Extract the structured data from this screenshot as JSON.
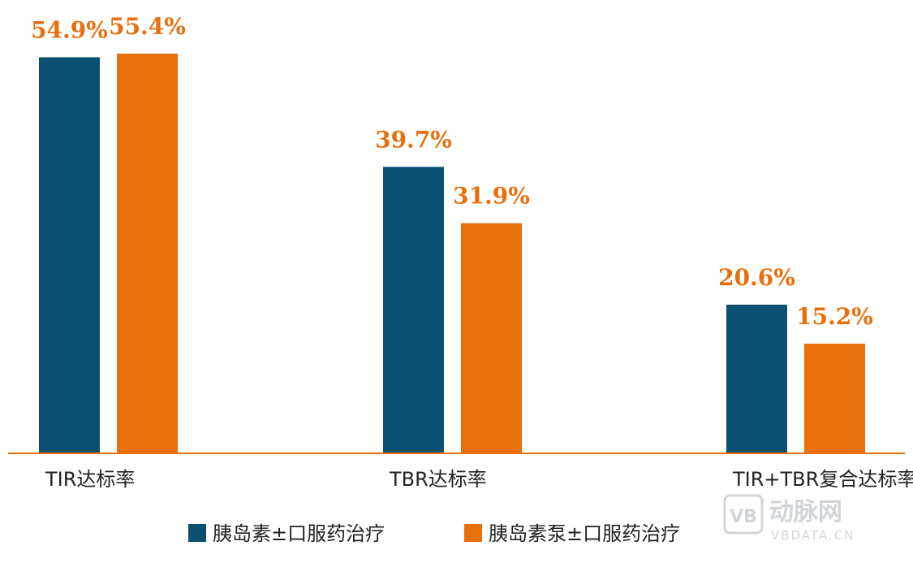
{
  "chart_data": {
    "type": "bar",
    "categories": [
      "TIR达标率",
      "TBR达标率",
      "TIR+TBR复合达标率"
    ],
    "series": [
      {
        "name": "胰岛素±口服药治疗",
        "values": [
          54.9,
          39.7,
          20.6
        ],
        "labels": [
          "54.9%",
          "39.7%",
          "20.6%"
        ]
      },
      {
        "name": "胰岛素泵±口服药治疗",
        "values": [
          55.4,
          31.9,
          15.2
        ],
        "labels": [
          "55.4%",
          "31.9%",
          "15.2%"
        ]
      }
    ],
    "title": "",
    "xlabel": "",
    "ylabel": "",
    "ylim": [
      0,
      55.4
    ],
    "grid": false,
    "legend_position": "bottom-center"
  },
  "colors": {
    "series_1": "#0b4f71",
    "series_2": "#e8700c",
    "label": "#e8700c",
    "axis": "#e8700c",
    "text": "#222222"
  },
  "watermark": {
    "brand": "动脉网",
    "site": "VBDATA.CN",
    "logo_text": "VB"
  }
}
